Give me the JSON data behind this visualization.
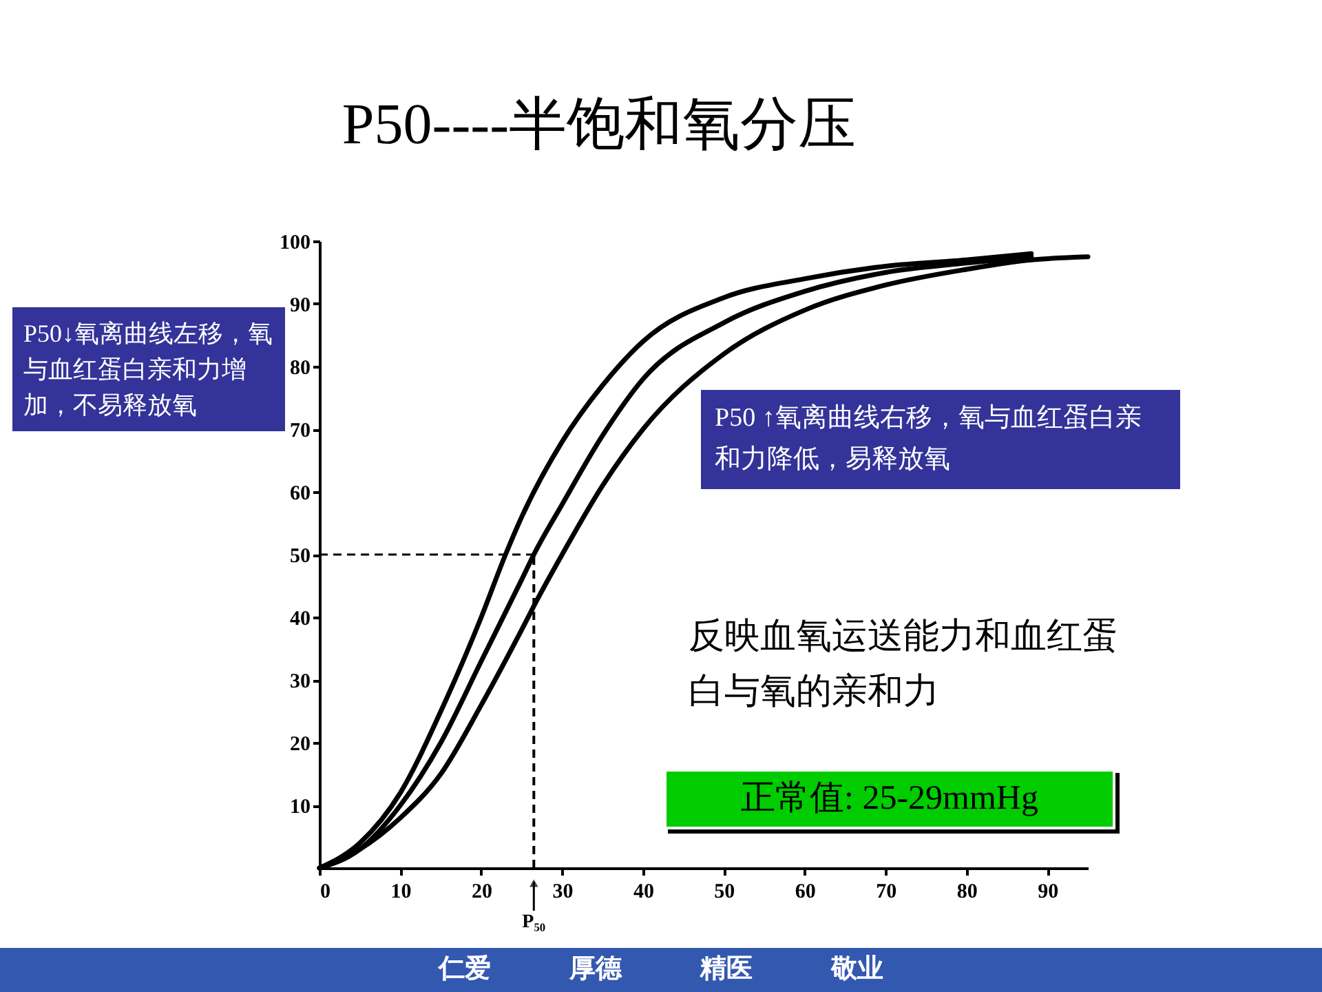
{
  "chart_data": {
    "type": "line",
    "title": "P50----半饱和氧分压",
    "series": [
      {
        "color": "#000000",
        "x": [
          0,
          5,
          10,
          15,
          20,
          23,
          25,
          30,
          35,
          40,
          50,
          60,
          70,
          80,
          88
        ],
        "values": [
          0,
          4,
          12,
          25,
          40,
          50,
          56,
          68,
          77,
          84,
          91,
          94,
          96,
          97,
          98
        ]
      },
      {
        "color": "#000000",
        "x": [
          0,
          5,
          10,
          15,
          20,
          25,
          26.5,
          30,
          35,
          40,
          50,
          60,
          70,
          80,
          88
        ],
        "values": [
          0,
          3,
          10,
          20,
          33,
          46,
          50,
          58,
          69,
          78,
          87,
          92,
          95,
          96.5,
          97.5
        ]
      },
      {
        "color": "#000000",
        "x": [
          0,
          5,
          10,
          15,
          20,
          25,
          27,
          30,
          35,
          40,
          50,
          60,
          70,
          80,
          88,
          95
        ],
        "values": [
          0,
          3,
          8,
          15,
          26,
          38,
          43,
          50,
          61,
          70,
          82,
          89,
          93,
          95.5,
          97,
          97.5
        ]
      }
    ],
    "xlim": [
      0,
      95
    ],
    "xticks": [
      0,
      10,
      20,
      30,
      40,
      50,
      60,
      70,
      80,
      90
    ],
    "ylim": [
      0,
      100
    ],
    "yticks": [
      10,
      20,
      30,
      40,
      50,
      60,
      70,
      80,
      90,
      100
    ],
    "ref_lines": [
      {
        "axis": "x",
        "value": 26.5,
        "label": "P₅₀",
        "line_style": "dashed"
      },
      {
        "axis": "y",
        "value": 50,
        "line_style": "dashed"
      }
    ],
    "annotations": [
      "P50↓氧离曲线左移，氧与血红蛋白亲和力增加，不易释放氧",
      "P50 ↑氧离曲线右移，氧与血红蛋白亲和力降低，易释放氧",
      "反映血氧运送能力和血红蛋白与氧的亲和力",
      "正常值: 25-29mmHg",
      "仁爱　　　厚德　　　精医　　　敬业"
    ],
    "line_style": "solid"
  }
}
